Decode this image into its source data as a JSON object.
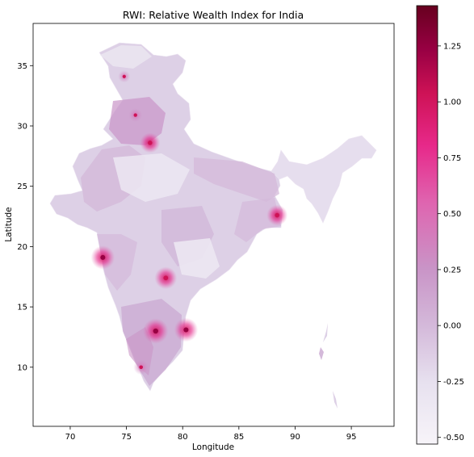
{
  "title": "RWI: Relative Wealth Index for India",
  "xlabel": "Longitude",
  "ylabel": "Latitude",
  "x_ticks": [
    70,
    75,
    80,
    85,
    90,
    95
  ],
  "y_ticks": [
    10,
    15,
    20,
    25,
    30,
    35
  ],
  "xlim": [
    66.7,
    98.8
  ],
  "ylim": [
    5.1,
    38.5
  ],
  "colorbar": {
    "ticks": [
      -0.5,
      -0.25,
      0.0,
      0.25,
      0.5,
      0.75,
      1.0,
      1.25
    ],
    "tick_labels": [
      "-0.50",
      "-0.25",
      "0.00",
      "0.25",
      "0.50",
      "0.75",
      "1.00",
      "1.25"
    ],
    "range": [
      -0.53,
      1.43
    ],
    "colormap": "PuRd",
    "colors": [
      "#f7f4f9",
      "#e7e1ef",
      "#d4b9da",
      "#c994c7",
      "#df65b0",
      "#e7298a",
      "#ce1256",
      "#980043",
      "#67001f"
    ]
  },
  "chart_data": {
    "type": "heatmap",
    "title": "RWI: Relative Wealth Index for India",
    "xlabel": "Longitude",
    "ylabel": "Latitude",
    "xlim": [
      66.7,
      98.8
    ],
    "ylim": [
      5.1,
      38.5
    ],
    "value_range": [
      -0.53,
      1.43
    ],
    "hotspots": [
      {
        "lon": 77.1,
        "lat": 28.6,
        "value": 0.95
      },
      {
        "lon": 75.8,
        "lat": 30.9,
        "value": 0.5
      },
      {
        "lon": 72.9,
        "lat": 19.1,
        "value": 1.2
      },
      {
        "lon": 78.5,
        "lat": 17.4,
        "value": 1.1
      },
      {
        "lon": 77.6,
        "lat": 13.0,
        "value": 1.3
      },
      {
        "lon": 80.3,
        "lat": 13.1,
        "value": 1.2
      },
      {
        "lon": 88.4,
        "lat": 22.6,
        "value": 1.0
      },
      {
        "lon": 76.3,
        "lat": 10.0,
        "value": 0.6
      },
      {
        "lon": 74.8,
        "lat": 34.1,
        "value": 0.4
      }
    ]
  }
}
